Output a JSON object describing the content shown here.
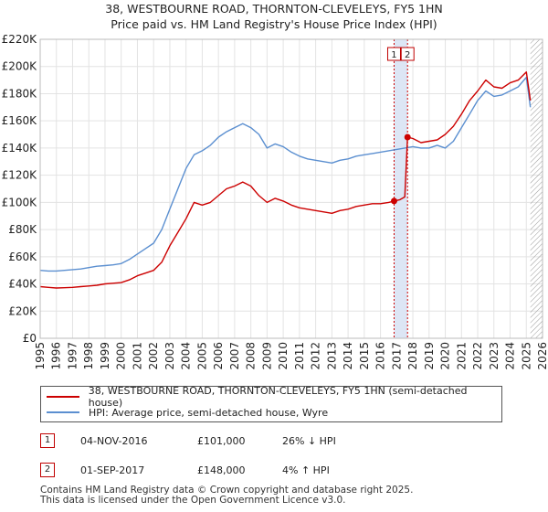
{
  "chart_data": {
    "type": "line",
    "title": "38, WESTBOURNE ROAD, THORNTON-CLEVELEYS, FY5 1HN",
    "subtitle": "Price paid vs. HM Land Registry's House Price Index (HPI)",
    "xlabel": "",
    "ylabel": "",
    "xlim": [
      1995,
      2026
    ],
    "ylim": [
      0,
      220000
    ],
    "x_ticks": [
      1995,
      1996,
      1997,
      1998,
      1999,
      2000,
      2001,
      2002,
      2003,
      2004,
      2005,
      2006,
      2007,
      2008,
      2009,
      2010,
      2011,
      2012,
      2013,
      2014,
      2015,
      2016,
      2017,
      2018,
      2019,
      2020,
      2021,
      2022,
      2023,
      2024,
      2025,
      2026
    ],
    "y_ticks": [
      {
        "value": 0,
        "label": "£0"
      },
      {
        "value": 20000,
        "label": "£20K"
      },
      {
        "value": 40000,
        "label": "£40K"
      },
      {
        "value": 60000,
        "label": "£60K"
      },
      {
        "value": 80000,
        "label": "£80K"
      },
      {
        "value": 100000,
        "label": "£100K"
      },
      {
        "value": 120000,
        "label": "£120K"
      },
      {
        "value": 140000,
        "label": "£140K"
      },
      {
        "value": 160000,
        "label": "£160K"
      },
      {
        "value": 180000,
        "label": "£180K"
      },
      {
        "value": 200000,
        "label": "£200K"
      },
      {
        "value": 220000,
        "label": "£220K"
      }
    ],
    "grid": true,
    "series": [
      {
        "name": "38, WESTBOURNE ROAD, THORNTON-CLEVELEYS, FY5 1HN (semi-detached house)",
        "color": "#cc0000",
        "x": [
          1995,
          1995.5,
          1996,
          1996.5,
          1997,
          1997.5,
          1998,
          1998.5,
          1999,
          1999.5,
          2000,
          2000.5,
          2001,
          2001.5,
          2002,
          2002.5,
          2003,
          2003.5,
          2004,
          2004.5,
          2005,
          2005.5,
          2006,
          2006.5,
          2007,
          2007.5,
          2008,
          2008.5,
          2009,
          2009.5,
          2010,
          2010.5,
          2011,
          2011.5,
          2012,
          2012.5,
          2013,
          2013.5,
          2014,
          2014.5,
          2015,
          2015.5,
          2016,
          2016.5,
          2016.84,
          2017.2,
          2017.5,
          2017.67,
          2018,
          2018.5,
          2019,
          2019.5,
          2020,
          2020.5,
          2021,
          2021.5,
          2022,
          2022.5,
          2023,
          2023.5,
          2024,
          2024.5,
          2025,
          2025.25
        ],
        "y": [
          38000,
          37500,
          37000,
          37200,
          37500,
          38000,
          38500,
          39000,
          40000,
          40500,
          41000,
          43000,
          46000,
          48000,
          50000,
          56000,
          68000,
          78000,
          88000,
          100000,
          98000,
          100000,
          105000,
          110000,
          112000,
          115000,
          112000,
          105000,
          100000,
          103000,
          101000,
          98000,
          96000,
          95000,
          94000,
          93000,
          92000,
          94000,
          95000,
          97000,
          98000,
          99000,
          99000,
          100000,
          101000,
          102000,
          104000,
          148000,
          147000,
          144000,
          145000,
          146000,
          150000,
          156000,
          165000,
          175000,
          182000,
          190000,
          185000,
          184000,
          188000,
          190000,
          196000,
          175000
        ]
      },
      {
        "name": "HPI: Average price, semi-detached house, Wyre",
        "color": "#5b8fd0",
        "x": [
          1995,
          1995.5,
          1996,
          1996.5,
          1997,
          1997.5,
          1998,
          1998.5,
          1999,
          1999.5,
          2000,
          2000.5,
          2001,
          2001.5,
          2002,
          2002.5,
          2003,
          2003.5,
          2004,
          2004.5,
          2005,
          2005.5,
          2006,
          2006.5,
          2007,
          2007.5,
          2008,
          2008.5,
          2009,
          2009.5,
          2010,
          2010.5,
          2011,
          2011.5,
          2012,
          2012.5,
          2013,
          2013.5,
          2014,
          2014.5,
          2015,
          2015.5,
          2016,
          2016.5,
          2017,
          2017.5,
          2018,
          2018.5,
          2019,
          2019.5,
          2020,
          2020.5,
          2021,
          2021.5,
          2022,
          2022.5,
          2023,
          2023.5,
          2024,
          2024.5,
          2025,
          2025.25
        ],
        "y": [
          50000,
          49500,
          49500,
          50000,
          50500,
          51000,
          52000,
          53000,
          53500,
          54000,
          55000,
          58000,
          62000,
          66000,
          70000,
          80000,
          95000,
          110000,
          125000,
          135000,
          138000,
          142000,
          148000,
          152000,
          155000,
          158000,
          155000,
          150000,
          140000,
          143000,
          141000,
          137000,
          134000,
          132000,
          131000,
          130000,
          129000,
          131000,
          132000,
          134000,
          135000,
          136000,
          137000,
          138000,
          139000,
          140000,
          141000,
          140000,
          140000,
          142000,
          140000,
          145000,
          155000,
          165000,
          175000,
          182000,
          178000,
          179000,
          182000,
          185000,
          192000,
          170000
        ]
      }
    ],
    "transactions": [
      {
        "label": "1",
        "x": 2016.84,
        "y": 101000
      },
      {
        "label": "2",
        "x": 2017.67,
        "y": 148000
      }
    ],
    "hatch_from": 2025.25
  },
  "legend": {
    "red_label": "38, WESTBOURNE ROAD, THORNTON-CLEVELEYS, FY5 1HN (semi-detached house)",
    "blue_label": "HPI: Average price, semi-detached house, Wyre"
  },
  "table": [
    {
      "num": "1",
      "date": "04-NOV-2016",
      "price": "£101,000",
      "pct": "26% ↓ HPI"
    },
    {
      "num": "2",
      "date": "01-SEP-2017",
      "price": "£148,000",
      "pct": "4% ↑ HPI"
    }
  ],
  "footer": {
    "line1": "Contains HM Land Registry data © Crown copyright and database right 2025.",
    "line2": "This data is licensed under the Open Government Licence v3.0."
  },
  "colors": {
    "red": "#cc0000",
    "blue": "#5b8fd0",
    "band": "#dde6f5"
  }
}
